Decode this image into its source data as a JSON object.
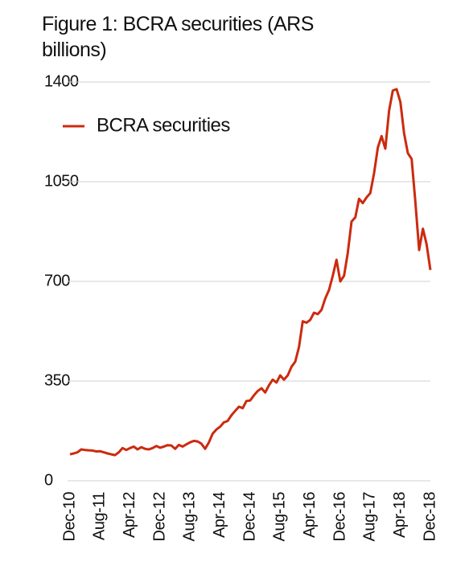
{
  "chart_data": {
    "type": "line",
    "title": "Figure 1: BCRA securities (ARS billions)",
    "categories": [
      "Dec-10",
      null,
      null,
      null,
      null,
      null,
      null,
      null,
      "Aug-11",
      null,
      null,
      null,
      null,
      null,
      null,
      null,
      "Apr-12",
      null,
      null,
      null,
      null,
      null,
      null,
      null,
      "Dec-12",
      null,
      null,
      null,
      null,
      null,
      null,
      null,
      "Aug-13",
      null,
      null,
      null,
      null,
      null,
      null,
      null,
      "Apr-14",
      null,
      null,
      null,
      null,
      null,
      null,
      null,
      "Dec-14",
      null,
      null,
      null,
      null,
      null,
      null,
      null,
      "Aug-15",
      null,
      null,
      null,
      null,
      null,
      null,
      null,
      "Apr-16",
      null,
      null,
      null,
      null,
      null,
      null,
      null,
      "Dec-16",
      null,
      null,
      null,
      null,
      null,
      null,
      null,
      "Aug-17",
      null,
      null,
      null,
      null,
      null,
      null,
      null,
      "Apr-18",
      null,
      null,
      null,
      null,
      null,
      null,
      null,
      "Dec-18"
    ],
    "series": [
      {
        "name": "BCRA securities",
        "color": "#cc2a0f",
        "values": [
          93,
          96,
          100,
          110,
          108,
          107,
          106,
          103,
          104,
          100,
          96,
          93,
          90,
          100,
          115,
          108,
          115,
          120,
          110,
          118,
          112,
          110,
          115,
          122,
          116,
          120,
          125,
          124,
          112,
          126,
          120,
          128,
          135,
          140,
          138,
          130,
          112,
          135,
          165,
          180,
          190,
          205,
          210,
          230,
          245,
          260,
          255,
          280,
          282,
          300,
          315,
          325,
          310,
          335,
          355,
          345,
          370,
          355,
          370,
          400,
          418,
          470,
          560,
          555,
          565,
          590,
          585,
          600,
          640,
          670,
          720,
          776,
          700,
          720,
          800,
          910,
          925,
          990,
          975,
          995,
          1010,
          1080,
          1170,
          1210,
          1166,
          1300,
          1370,
          1375,
          1330,
          1220,
          1150,
          1130,
          980,
          810,
          885,
          830,
          740
        ]
      }
    ],
    "ylim": [
      0,
      1400
    ],
    "yticks": [
      0,
      350,
      700,
      1050,
      1400
    ],
    "grid": true,
    "legend": "top-left"
  }
}
